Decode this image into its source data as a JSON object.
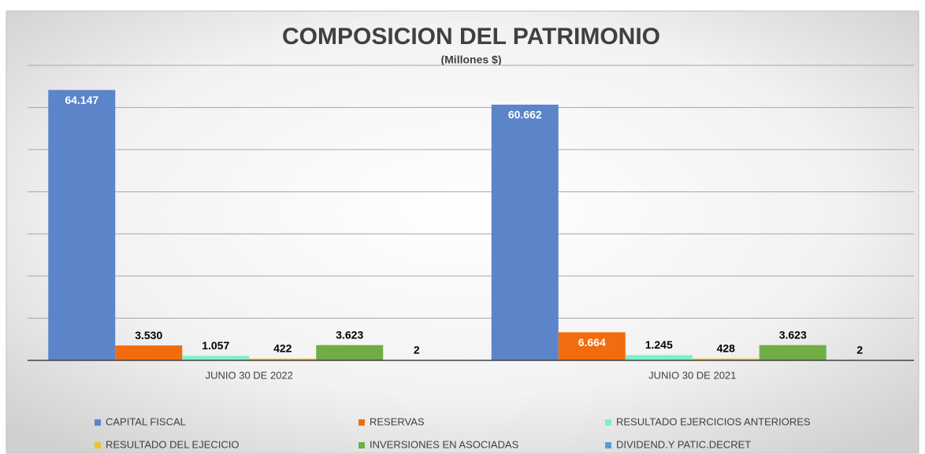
{
  "chart_data": {
    "type": "bar",
    "title": "COMPOSICION DEL PATRIMONIO",
    "subtitle": "(Millones $)",
    "categories": [
      "JUNIO 30 DE 2022",
      "JUNIO 30 DE 2021"
    ],
    "series": [
      {
        "name": "CAPITAL FISCAL",
        "color": "#5b84c9",
        "values": [
          64147,
          60662
        ],
        "value_labels": [
          "64.147",
          "60.662"
        ]
      },
      {
        "name": "RESERVAS",
        "color": "#f26b0f",
        "values": [
          3530,
          6664
        ],
        "value_labels": [
          "3.530",
          "6.664"
        ]
      },
      {
        "name": "RESULTADO EJERCICIOS ANTERIORES",
        "color": "#7ef0c8",
        "values": [
          1057,
          1245
        ],
        "value_labels": [
          "1.057",
          "1.245"
        ]
      },
      {
        "name": "RESULTADO DEL EJECICIO",
        "color": "#f2c02f",
        "values": [
          422,
          428
        ],
        "value_labels": [
          "422",
          "428"
        ]
      },
      {
        "name": "INVERSIONES EN ASOCIADAS",
        "color": "#70ad47",
        "values": [
          3623,
          3623
        ],
        "value_labels": [
          "3.623",
          "3.623"
        ]
      },
      {
        "name": "DIVIDEND.Y PATIC.DECRET",
        "color": "#5b9bd5",
        "values": [
          2,
          2
        ],
        "value_labels": [
          "2",
          "2"
        ]
      }
    ],
    "ylim": [
      0,
      70000
    ],
    "yticks": [
      0,
      10000,
      20000,
      30000,
      40000,
      50000,
      60000,
      70000
    ],
    "grid": true,
    "legend": "bottom"
  }
}
